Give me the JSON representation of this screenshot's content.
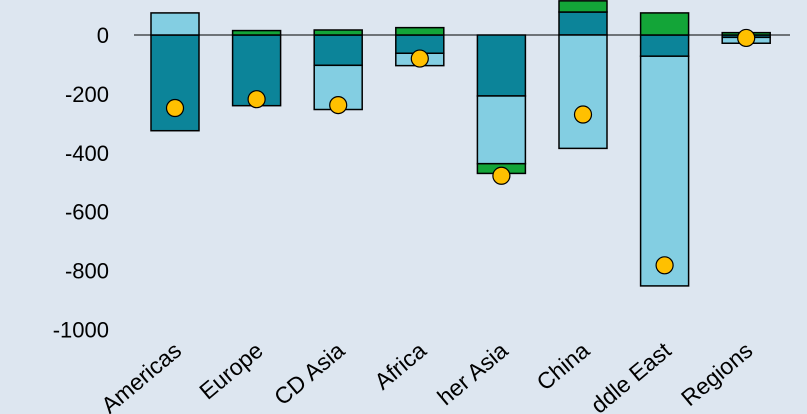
{
  "chart_data": {
    "type": "bar",
    "stacked": true,
    "title": "",
    "xlabel": "",
    "ylabel": "",
    "ylim": [
      -1000,
      100
    ],
    "yticks": [
      0,
      -200,
      -400,
      -600,
      -800,
      -1000
    ],
    "grid": false,
    "categories": [
      "Americas",
      "Europe",
      "OECD Asia",
      "Africa",
      "Other Asia",
      "China",
      "Middle East",
      "Other Regions"
    ],
    "tick_labels": [
      "Americas",
      "Europe",
      "CD Asia",
      "Africa",
      "her Asia",
      "China",
      "ddle East",
      "Regions"
    ],
    "series": [
      {
        "color": "#0c8499",
        "values": [
          -325,
          -240,
          -103,
          -62,
          -207,
          78,
          -72,
          -8
        ]
      },
      {
        "color": "#83cee2",
        "values": [
          75,
          0,
          -150,
          -42,
          -230,
          -385,
          -780,
          -20
        ]
      },
      {
        "color": "#13a538",
        "values": [
          0,
          15,
          17,
          25,
          -33,
          38,
          75,
          8
        ]
      }
    ],
    "markers": {
      "color": "#ffc000",
      "values": [
        -248,
        -218,
        -238,
        -80,
        -478,
        -270,
        -782,
        -10
      ]
    }
  },
  "colors": {
    "background": "#dde6f0",
    "axis": "#000000",
    "bar_outline": "#000000"
  }
}
